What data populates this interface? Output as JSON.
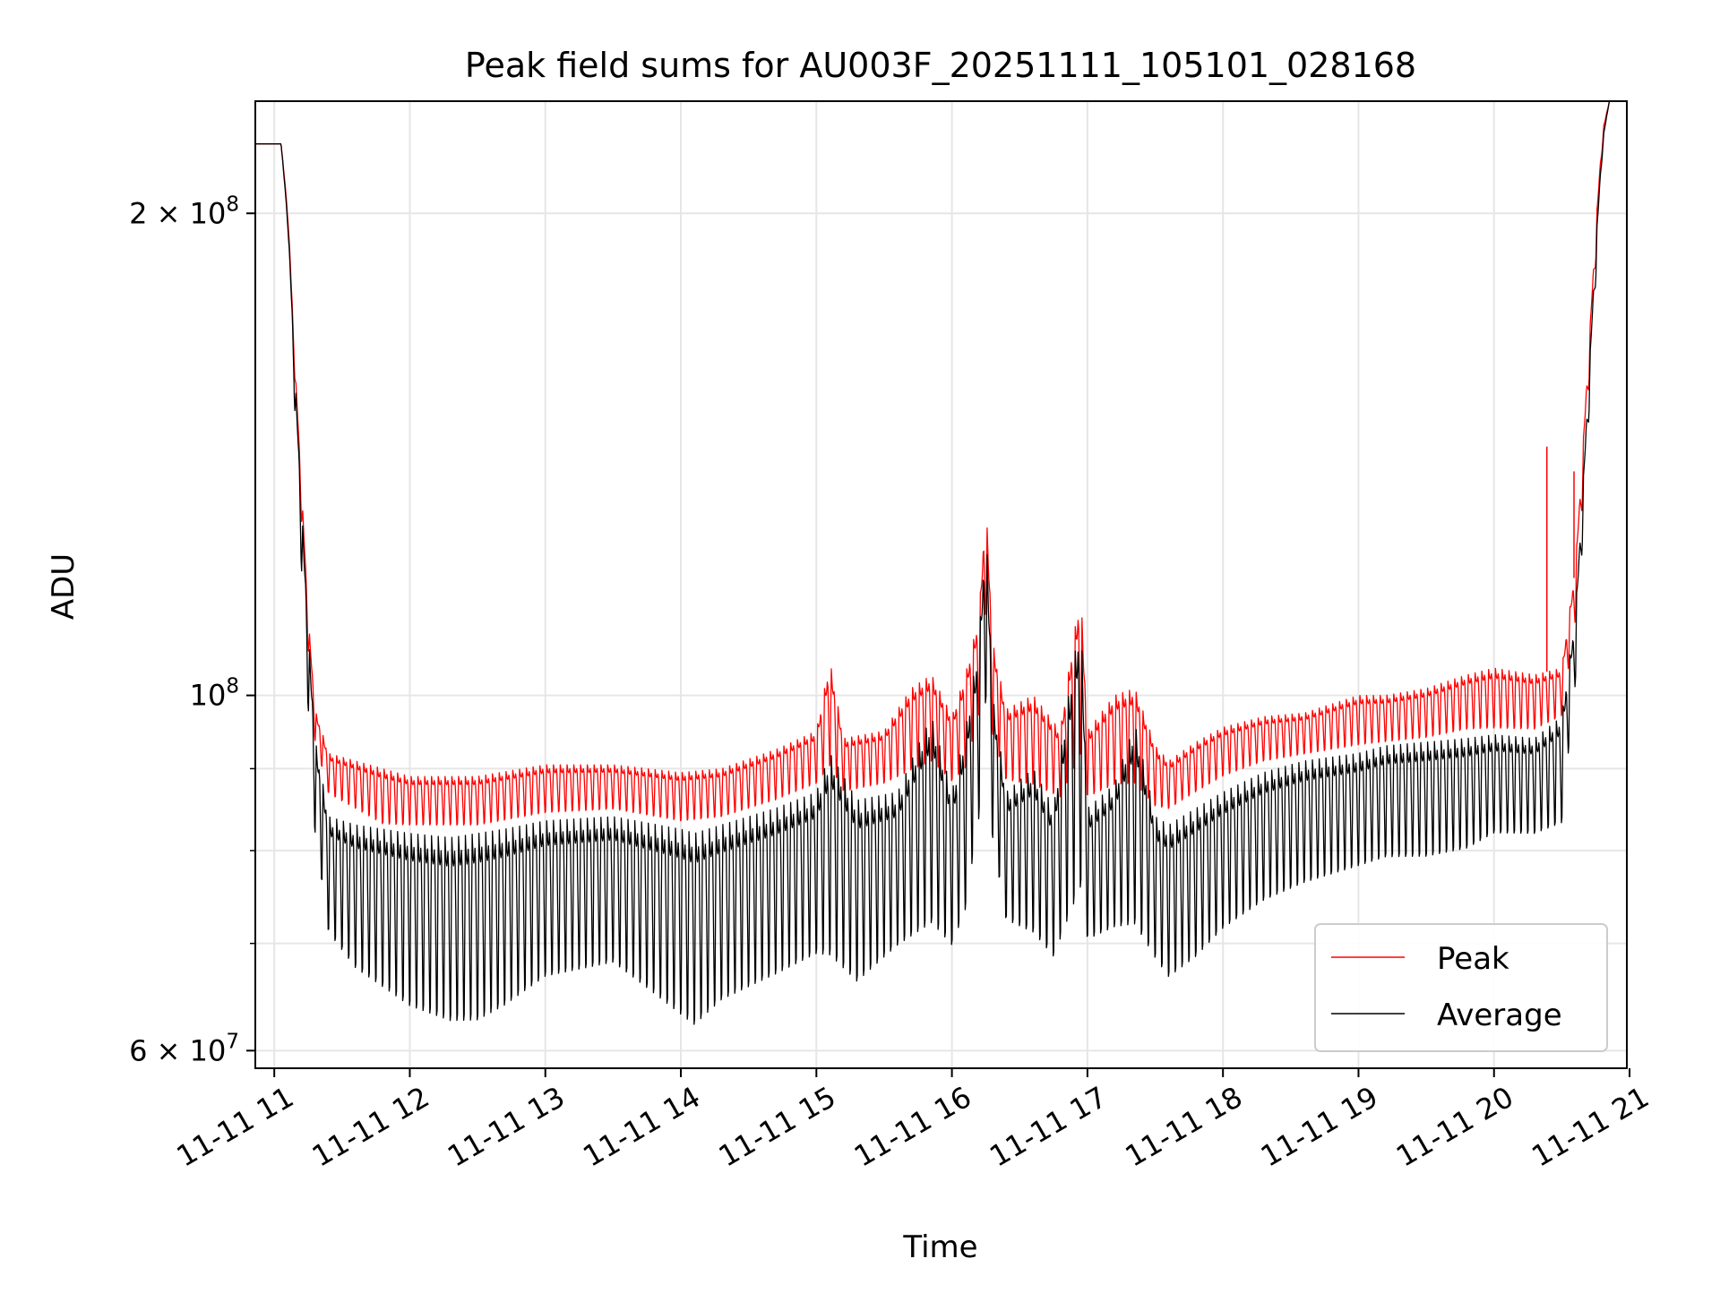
{
  "chart_data": {
    "type": "line",
    "title": "Peak field sums for AU003F_20251111_105101_028168",
    "xlabel": "Time",
    "ylabel": "ADU",
    "yscale": "log",
    "xlim": [
      10.86,
      20.98
    ],
    "ylim": [
      58500000,
      235000000
    ],
    "x_ticks": [
      11,
      12,
      13,
      14,
      15,
      16,
      17,
      18,
      19,
      20,
      21
    ],
    "x_tick_labels": [
      "11-11 11",
      "11-11 12",
      "11-11 13",
      "11-11 14",
      "11-11 15",
      "11-11 16",
      "11-11 17",
      "11-11 18",
      "11-11 19",
      "11-11 20",
      "11-11 21"
    ],
    "y_ticks": [
      60000000,
      100000000,
      200000000
    ],
    "y_tick_labels": [
      {
        "base": "6 × 10",
        "exp": "7"
      },
      {
        "base": "10",
        "exp": "8"
      },
      {
        "base": "2 × 10",
        "exp": "8"
      }
    ],
    "y_minor_ticks": [
      70000000,
      80000000,
      90000000
    ],
    "grid": true,
    "legend_position": "lower-right",
    "x_unit": "hour of 2025-11-11",
    "series": [
      {
        "name": "Peak",
        "color": "#ff0000",
        "style": "oscillating",
        "envelope": [
          [
            10.86,
            221000000,
            221000000
          ],
          [
            11.05,
            221000000,
            221000000
          ],
          [
            11.1,
            200000000,
            198000000
          ],
          [
            11.15,
            162000000,
            158000000
          ],
          [
            11.2,
            135000000,
            128000000
          ],
          [
            11.25,
            112000000,
            106000000
          ],
          [
            11.3,
            98000000,
            93000000
          ],
          [
            11.4,
            92000000,
            86000000
          ],
          [
            11.6,
            91000000,
            84000000
          ],
          [
            11.8,
            90000000,
            82000000
          ],
          [
            12.0,
            89000000,
            82000000
          ],
          [
            12.5,
            89000000,
            82000000
          ],
          [
            13.0,
            90500000,
            83500000
          ],
          [
            13.5,
            90500000,
            84000000
          ],
          [
            14.0,
            89500000,
            82500000
          ],
          [
            14.3,
            90000000,
            83000000
          ],
          [
            14.7,
            92500000,
            85000000
          ],
          [
            15.0,
            95000000,
            87000000
          ],
          [
            15.1,
            105000000,
            88000000
          ],
          [
            15.2,
            94000000,
            86000000
          ],
          [
            15.5,
            95000000,
            87000000
          ],
          [
            15.7,
            101000000,
            88000000
          ],
          [
            15.85,
            103000000,
            89000000
          ],
          [
            16.0,
            97000000,
            87000000
          ],
          [
            16.1,
            103000000,
            88000000
          ],
          [
            16.2,
            112000000,
            95000000
          ],
          [
            16.25,
            132000000,
            110000000
          ],
          [
            16.3,
            108000000,
            92000000
          ],
          [
            16.4,
            98000000,
            87000000
          ],
          [
            16.6,
            100000000,
            86000000
          ],
          [
            16.8,
            95000000,
            85000000
          ],
          [
            16.95,
            116000000,
            88000000
          ],
          [
            17.0,
            95000000,
            85000000
          ],
          [
            17.2,
            100000000,
            86000000
          ],
          [
            17.35,
            101000000,
            86000000
          ],
          [
            17.5,
            93000000,
            84000000
          ],
          [
            17.6,
            91000000,
            84000000
          ],
          [
            17.8,
            93500000,
            86000000
          ],
          [
            18.0,
            95500000,
            88000000
          ],
          [
            18.3,
            97000000,
            90000000
          ],
          [
            18.6,
            97500000,
            91000000
          ],
          [
            19.0,
            100000000,
            92000000
          ],
          [
            19.2,
            100000000,
            92500000
          ],
          [
            19.5,
            101000000,
            93000000
          ],
          [
            19.8,
            103000000,
            94000000
          ],
          [
            20.0,
            104000000,
            94000000
          ],
          [
            20.3,
            103000000,
            94000000
          ],
          [
            20.5,
            104000000,
            96000000
          ],
          [
            20.6,
            120000000,
            110000000
          ],
          [
            20.65,
            140000000,
            130000000
          ],
          [
            20.7,
            165000000,
            155000000
          ],
          [
            20.75,
            195000000,
            185000000
          ],
          [
            20.8,
            225000000,
            220000000
          ],
          [
            20.85,
            235000000,
            235000000
          ],
          [
            20.98,
            235000000,
            235000000
          ]
        ],
        "spikes": [
          [
            20.39,
            143000000
          ],
          [
            20.59,
            138000000
          ]
        ]
      },
      {
        "name": "Average",
        "color": "#000000",
        "style": "oscillating",
        "envelope": [
          [
            10.86,
            221000000,
            221000000
          ],
          [
            11.05,
            221000000,
            221000000
          ],
          [
            11.1,
            198000000,
            196000000
          ],
          [
            11.15,
            160000000,
            150000000
          ],
          [
            11.2,
            132000000,
            118000000
          ],
          [
            11.25,
            110000000,
            96000000
          ],
          [
            11.3,
            94000000,
            80000000
          ],
          [
            11.4,
            84000000,
            69000000
          ],
          [
            11.6,
            83000000,
            65000000
          ],
          [
            11.8,
            82500000,
            63000000
          ],
          [
            12.0,
            82000000,
            61000000
          ],
          [
            12.3,
            81500000,
            59500000
          ],
          [
            12.5,
            82000000,
            59500000
          ],
          [
            12.7,
            82500000,
            61000000
          ],
          [
            13.0,
            83500000,
            64000000
          ],
          [
            13.5,
            84000000,
            65500000
          ],
          [
            14.0,
            82500000,
            60000000
          ],
          [
            14.1,
            82000000,
            59000000
          ],
          [
            14.3,
            83000000,
            61500000
          ],
          [
            14.7,
            85000000,
            64000000
          ],
          [
            15.0,
            87000000,
            66000000
          ],
          [
            15.1,
            92000000,
            65000000
          ],
          [
            15.3,
            86000000,
            63000000
          ],
          [
            15.6,
            87000000,
            67000000
          ],
          [
            15.85,
            97000000,
            68000000
          ],
          [
            16.0,
            87000000,
            67000000
          ],
          [
            16.1,
            95000000,
            70000000
          ],
          [
            16.2,
            108000000,
            80000000
          ],
          [
            16.25,
            128000000,
            95000000
          ],
          [
            16.3,
            100000000,
            78000000
          ],
          [
            16.4,
            87000000,
            70000000
          ],
          [
            16.6,
            90000000,
            68000000
          ],
          [
            16.75,
            85000000,
            66000000
          ],
          [
            16.95,
            112000000,
            70000000
          ],
          [
            17.0,
            85000000,
            68000000
          ],
          [
            17.2,
            88000000,
            69000000
          ],
          [
            17.35,
            96000000,
            68000000
          ],
          [
            17.5,
            84000000,
            66000000
          ],
          [
            17.6,
            83000000,
            64000000
          ],
          [
            17.8,
            85000000,
            66000000
          ],
          [
            18.0,
            87000000,
            69000000
          ],
          [
            18.3,
            89500000,
            72000000
          ],
          [
            18.6,
            91000000,
            74000000
          ],
          [
            19.0,
            92000000,
            76000000
          ],
          [
            19.2,
            93000000,
            77000000
          ],
          [
            19.5,
            93500000,
            77000000
          ],
          [
            19.8,
            94000000,
            78000000
          ],
          [
            20.0,
            94500000,
            80000000
          ],
          [
            20.3,
            94000000,
            80000000
          ],
          [
            20.5,
            97000000,
            81000000
          ],
          [
            20.6,
            112000000,
            100000000
          ],
          [
            20.65,
            132000000,
            122000000
          ],
          [
            20.7,
            158000000,
            148000000
          ],
          [
            20.75,
            190000000,
            180000000
          ],
          [
            20.8,
            222000000,
            218000000
          ],
          [
            20.85,
            235000000,
            235000000
          ],
          [
            20.98,
            235000000,
            235000000
          ]
        ],
        "spikes": []
      }
    ]
  }
}
